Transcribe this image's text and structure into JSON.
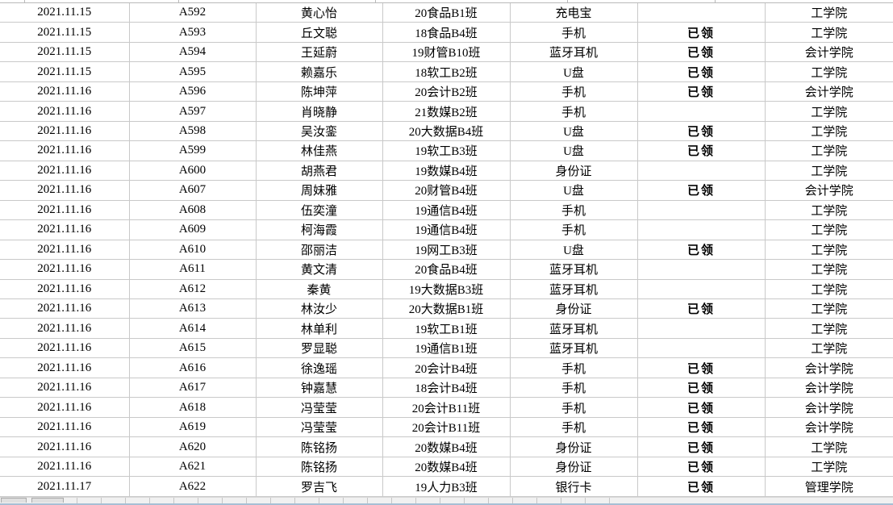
{
  "table": {
    "column_keys": [
      "date",
      "id",
      "name",
      "class",
      "item",
      "status",
      "college"
    ],
    "rows": [
      [
        "2021.11.15",
        "A592",
        "黄心怡",
        "20食品B1班",
        "充电宝",
        "",
        "工学院"
      ],
      [
        "2021.11.15",
        "A593",
        "丘文聪",
        "18食品B4班",
        "手机",
        "已领",
        "工学院"
      ],
      [
        "2021.11.15",
        "A594",
        "王延蔚",
        "19财管B10班",
        "蓝牙耳机",
        "已领",
        "会计学院"
      ],
      [
        "2021.11.15",
        "A595",
        "赖嘉乐",
        "18软工B2班",
        "U盘",
        "已领",
        "工学院"
      ],
      [
        "2021.11.16",
        "A596",
        "陈坤萍",
        "20会计B2班",
        "手机",
        "已领",
        "会计学院"
      ],
      [
        "2021.11.16",
        "A597",
        "肖晓静",
        "21数媒B2班",
        "手机",
        "",
        "工学院"
      ],
      [
        "2021.11.16",
        "A598",
        "吴汝銮",
        "20大数据B4班",
        "U盘",
        "已领",
        "工学院"
      ],
      [
        "2021.11.16",
        "A599",
        "林佳燕",
        "19软工B3班",
        "U盘",
        "已领",
        "工学院"
      ],
      [
        "2021.11.16",
        "A600",
        "胡燕君",
        "19数媒B4班",
        "身份证",
        "",
        "工学院"
      ],
      [
        "2021.11.16",
        "A607",
        "周妹雅",
        "20财管B4班",
        "U盘",
        "已领",
        "会计学院"
      ],
      [
        "2021.11.16",
        "A608",
        "伍奕潼",
        "19通信B4班",
        "手机",
        "",
        "工学院"
      ],
      [
        "2021.11.16",
        "A609",
        "柯海霞",
        "19通信B4班",
        "手机",
        "",
        "工学院"
      ],
      [
        "2021.11.16",
        "A610",
        "邵丽洁",
        "19网工B3班",
        "U盘",
        "已领",
        "工学院"
      ],
      [
        "2021.11.16",
        "A611",
        "黄文清",
        "20食品B4班",
        "蓝牙耳机",
        "",
        "工学院"
      ],
      [
        "2021.11.16",
        "A612",
        "秦黄",
        "19大数据B3班",
        "蓝牙耳机",
        "",
        "工学院"
      ],
      [
        "2021.11.16",
        "A613",
        "林汝少",
        "20大数据B1班",
        "身份证",
        "已领",
        "工学院"
      ],
      [
        "2021.11.16",
        "A614",
        "林单利",
        "19软工B1班",
        "蓝牙耳机",
        "",
        "工学院"
      ],
      [
        "2021.11.16",
        "A615",
        "罗显聪",
        "19通信B1班",
        "蓝牙耳机",
        "",
        "工学院"
      ],
      [
        "2021.11.16",
        "A616",
        "徐逸瑶",
        "20会计B4班",
        "手机",
        "已领",
        "会计学院"
      ],
      [
        "2021.11.16",
        "A617",
        "钟嘉慧",
        "18会计B4班",
        "手机",
        "已领",
        "会计学院"
      ],
      [
        "2021.11.16",
        "A618",
        "冯莹莹",
        "20会计B11班",
        "手机",
        "已领",
        "会计学院"
      ],
      [
        "2021.11.16",
        "A619",
        "冯莹莹",
        "20会计B11班",
        "手机",
        "已领",
        "会计学院"
      ],
      [
        "2021.11.16",
        "A620",
        "陈铭扬",
        "20数媒B4班",
        "身份证",
        "已领",
        "工学院"
      ],
      [
        "2021.11.16",
        "A621",
        "陈铭扬",
        "20数媒B4班",
        "身份证",
        "已领",
        "工学院"
      ],
      [
        "2021.11.17",
        "A622",
        "罗吉飞",
        "19人力B3班",
        "银行卡",
        "已领",
        "管理学院"
      ]
    ]
  },
  "colors": {
    "status_red": "#ff0000",
    "gridline": "#c9c9c9",
    "bottom_edge_blue": "#a7bfd4"
  }
}
